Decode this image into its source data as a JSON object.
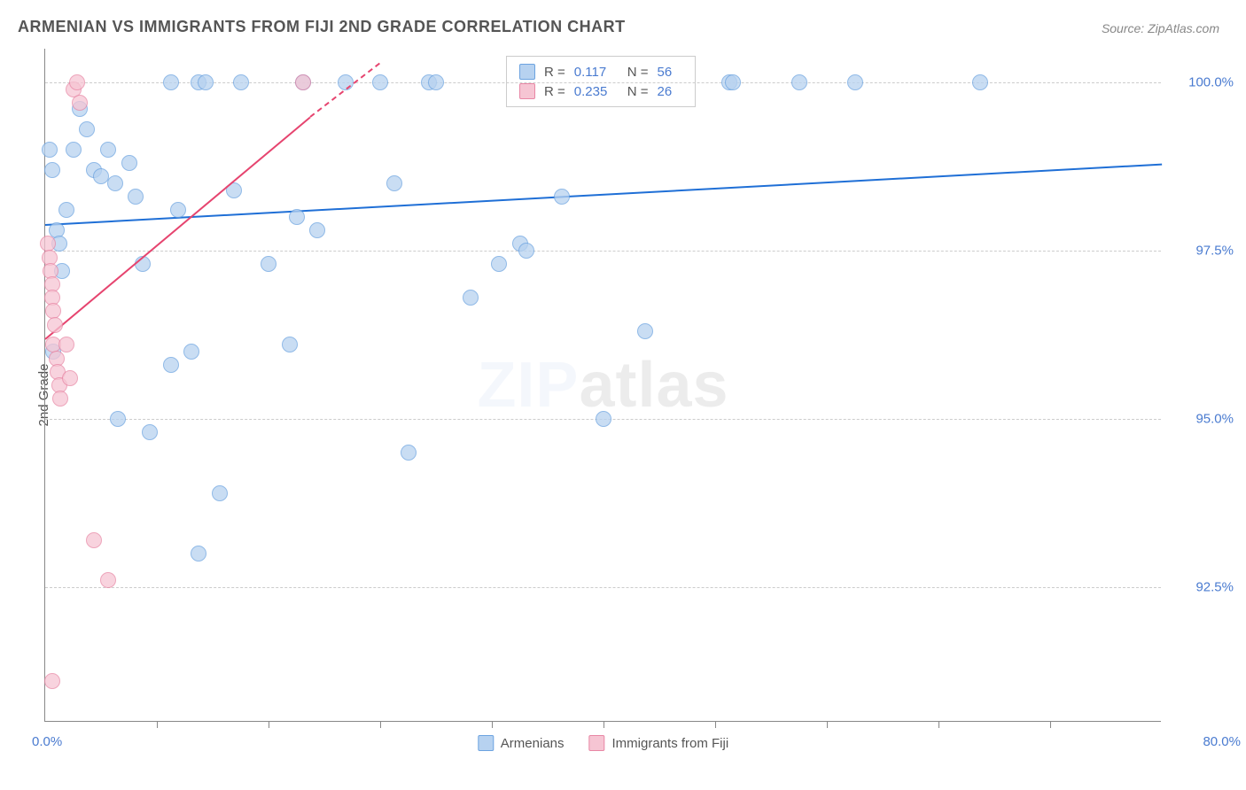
{
  "title": "ARMENIAN VS IMMIGRANTS FROM FIJI 2ND GRADE CORRELATION CHART",
  "source": "Source: ZipAtlas.com",
  "ylabel": "2nd Grade",
  "watermark_a": "ZIP",
  "watermark_b": "atlas",
  "chart": {
    "type": "scatter",
    "background_color": "#ffffff",
    "grid_color": "#cccccc",
    "axis_color": "#888888",
    "xlim": [
      0,
      80
    ],
    "ylim": [
      90.5,
      100.5
    ],
    "xmin_label": "0.0%",
    "xmax_label": "80.0%",
    "yticks": [
      {
        "v": 92.5,
        "label": "92.5%"
      },
      {
        "v": 95.0,
        "label": "95.0%"
      },
      {
        "v": 97.5,
        "label": "97.5%"
      },
      {
        "v": 100.0,
        "label": "100.0%"
      }
    ],
    "xtick_positions": [
      8,
      16,
      24,
      32,
      40,
      48,
      56,
      64,
      72
    ],
    "series": [
      {
        "name": "Armenians",
        "fill": "#b7d2f0",
        "stroke": "#6ca3e0",
        "trend_color": "#1f6fd6",
        "r_value": "0.117",
        "n_value": "56",
        "marker_radius": 9,
        "trend": {
          "x1": 0,
          "y1": 97.9,
          "x2": 80,
          "y2": 98.8
        },
        "points": [
          {
            "x": 0.3,
            "y": 99.0
          },
          {
            "x": 0.5,
            "y": 98.7
          },
          {
            "x": 0.8,
            "y": 97.8
          },
          {
            "x": 1.0,
            "y": 97.6
          },
          {
            "x": 1.2,
            "y": 97.2
          },
          {
            "x": 0.6,
            "y": 96.0
          },
          {
            "x": 1.5,
            "y": 98.1
          },
          {
            "x": 2.0,
            "y": 99.0
          },
          {
            "x": 2.5,
            "y": 99.6
          },
          {
            "x": 3.0,
            "y": 99.3
          },
          {
            "x": 3.5,
            "y": 98.7
          },
          {
            "x": 4.0,
            "y": 98.6
          },
          {
            "x": 4.5,
            "y": 99.0
          },
          {
            "x": 5.0,
            "y": 98.5
          },
          {
            "x": 5.2,
            "y": 95.0
          },
          {
            "x": 6.0,
            "y": 98.8
          },
          {
            "x": 6.5,
            "y": 98.3
          },
          {
            "x": 7.0,
            "y": 97.3
          },
          {
            "x": 7.5,
            "y": 94.8
          },
          {
            "x": 9.0,
            "y": 95.8
          },
          {
            "x": 9.0,
            "y": 100.0
          },
          {
            "x": 9.5,
            "y": 98.1
          },
          {
            "x": 10.5,
            "y": 96.0
          },
          {
            "x": 11.0,
            "y": 100.0
          },
          {
            "x": 11.5,
            "y": 100.0
          },
          {
            "x": 11.0,
            "y": 93.0
          },
          {
            "x": 12.5,
            "y": 93.9
          },
          {
            "x": 13.5,
            "y": 98.4
          },
          {
            "x": 14.0,
            "y": 100.0
          },
          {
            "x": 16.0,
            "y": 97.3
          },
          {
            "x": 17.5,
            "y": 96.1
          },
          {
            "x": 18.0,
            "y": 98.0
          },
          {
            "x": 18.5,
            "y": 100.0
          },
          {
            "x": 19.5,
            "y": 97.8
          },
          {
            "x": 21.5,
            "y": 100.0
          },
          {
            "x": 24.0,
            "y": 100.0
          },
          {
            "x": 25.0,
            "y": 98.5
          },
          {
            "x": 26.0,
            "y": 94.5
          },
          {
            "x": 27.5,
            "y": 100.0
          },
          {
            "x": 28.0,
            "y": 100.0
          },
          {
            "x": 30.5,
            "y": 96.8
          },
          {
            "x": 32.5,
            "y": 97.3
          },
          {
            "x": 34.0,
            "y": 97.6
          },
          {
            "x": 34.5,
            "y": 97.5
          },
          {
            "x": 37.0,
            "y": 98.3
          },
          {
            "x": 40.0,
            "y": 95.0
          },
          {
            "x": 43.0,
            "y": 96.3
          },
          {
            "x": 49.0,
            "y": 100.0
          },
          {
            "x": 49.3,
            "y": 100.0
          },
          {
            "x": 54.0,
            "y": 100.0
          },
          {
            "x": 58.0,
            "y": 100.0
          },
          {
            "x": 67.0,
            "y": 100.0
          }
        ]
      },
      {
        "name": "Immigrants from Fiji",
        "fill": "#f6c5d3",
        "stroke": "#e887a5",
        "trend_color": "#e6446f",
        "r_value": "0.235",
        "n_value": "26",
        "marker_radius": 9,
        "trend": {
          "x1": 0,
          "y1": 96.2,
          "x2": 19,
          "y2": 99.5
        },
        "trend_dash": {
          "x1": 19,
          "y1": 99.5,
          "x2": 24,
          "y2": 100.3
        },
        "points": [
          {
            "x": 0.2,
            "y": 97.6
          },
          {
            "x": 0.3,
            "y": 97.4
          },
          {
            "x": 0.4,
            "y": 97.2
          },
          {
            "x": 0.5,
            "y": 97.0
          },
          {
            "x": 0.5,
            "y": 96.8
          },
          {
            "x": 0.6,
            "y": 96.6
          },
          {
            "x": 0.7,
            "y": 96.4
          },
          {
            "x": 0.6,
            "y": 96.1
          },
          {
            "x": 0.8,
            "y": 95.9
          },
          {
            "x": 0.9,
            "y": 95.7
          },
          {
            "x": 1.0,
            "y": 95.5
          },
          {
            "x": 1.1,
            "y": 95.3
          },
          {
            "x": 1.5,
            "y": 96.1
          },
          {
            "x": 1.8,
            "y": 95.6
          },
          {
            "x": 2.0,
            "y": 99.9
          },
          {
            "x": 2.3,
            "y": 100.0
          },
          {
            "x": 2.5,
            "y": 99.7
          },
          {
            "x": 3.5,
            "y": 93.2
          },
          {
            "x": 4.5,
            "y": 92.6
          },
          {
            "x": 0.5,
            "y": 91.1
          },
          {
            "x": 18.5,
            "y": 100.0
          }
        ]
      }
    ]
  }
}
